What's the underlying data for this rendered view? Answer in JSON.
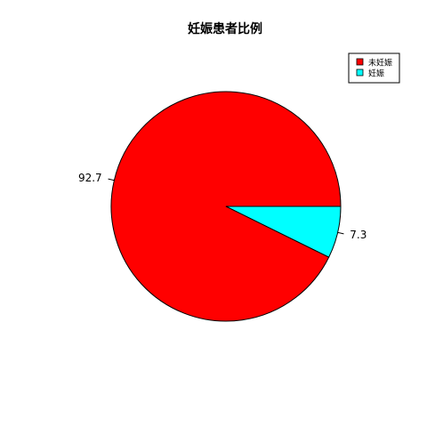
{
  "chart_data": {
    "type": "pie",
    "title": "妊娠患者比例",
    "categories": [
      "未妊娠",
      "妊娠"
    ],
    "values": [
      92.7,
      7.3
    ],
    "data_labels": [
      "92.7",
      "7.3"
    ],
    "colors": [
      "#ff0000",
      "#00ffff"
    ],
    "legend": {
      "position": "top-right",
      "entries": [
        "未妊娠",
        "妊娠"
      ]
    },
    "start_angle_deg": 0,
    "direction": "counterclockwise"
  }
}
